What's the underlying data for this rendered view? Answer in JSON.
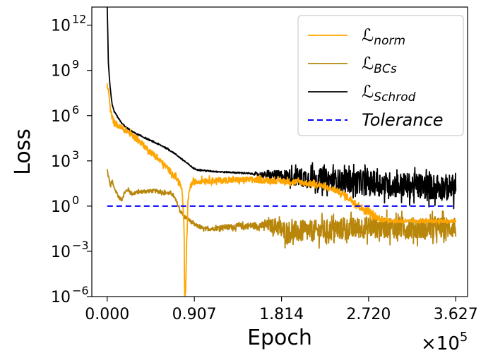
{
  "chart_data": {
    "type": "line",
    "title": "",
    "xlabel": "Epoch",
    "ylabel": "Loss",
    "x_multiplier_label": "×10",
    "x_multiplier_exp": "5",
    "x_scale_factor": 100000,
    "x_ticks": [
      0,
      90700,
      181400,
      272000,
      362700
    ],
    "x_tick_labels": [
      "0.000",
      "0.907",
      "1.814",
      "2.720",
      "3.627"
    ],
    "xlim": [
      -16000,
      375000
    ],
    "y_scale": "log",
    "ylim_exp": [
      -6,
      13.2
    ],
    "y_ticks_exp": [
      -6,
      -3,
      0,
      3,
      6,
      9,
      12
    ],
    "y_tick_base": "10",
    "y_tick_exps": [
      "−6",
      "−3",
      "0",
      "3",
      "6",
      "9",
      "12"
    ],
    "grid": false,
    "legend_position": "top-right",
    "series": [
      {
        "name": "norm",
        "legend_main": "ℒ",
        "legend_sub": "norm",
        "color": "#FFA500",
        "style": "solid",
        "points_log10": [
          [
            0,
            8
          ],
          [
            700,
            7.8
          ],
          [
            1500,
            7.5
          ],
          [
            2500,
            6.9
          ],
          [
            3500,
            6.3
          ],
          [
            5000,
            5.9
          ],
          [
            7000,
            5.6
          ],
          [
            10000,
            5.4
          ],
          [
            14000,
            5.2
          ],
          [
            20000,
            5.0
          ],
          [
            30000,
            4.5
          ],
          [
            40000,
            3.9
          ],
          [
            50000,
            3.3
          ],
          [
            60000,
            2.7
          ],
          [
            70000,
            2.0
          ],
          [
            75000,
            1.6
          ],
          [
            78000,
            1.0
          ],
          [
            80000,
            -1.5
          ],
          [
            80500,
            -6
          ],
          [
            81500,
            -6
          ],
          [
            82500,
            -3
          ],
          [
            84000,
            0.2
          ],
          [
            86000,
            1.3
          ],
          [
            90000,
            1.6
          ],
          [
            100000,
            1.7
          ],
          [
            120000,
            1.7
          ],
          [
            150000,
            1.75
          ],
          [
            200000,
            1.6
          ],
          [
            220000,
            1.4
          ],
          [
            240000,
            1.0
          ],
          [
            250000,
            0.6
          ],
          [
            260000,
            0.1
          ],
          [
            268000,
            -0.3
          ],
          [
            272000,
            -0.3
          ],
          [
            276000,
            -0.6
          ],
          [
            285000,
            -0.9
          ],
          [
            300000,
            -1.0
          ],
          [
            320000,
            -1.0
          ],
          [
            340000,
            -1.0
          ],
          [
            362700,
            -1.0
          ]
        ],
        "noise": [
          [
            240000,
            0.25
          ],
          [
            270000,
            0.35
          ],
          [
            290000,
            0.15
          ]
        ]
      },
      {
        "name": "BCs",
        "legend_main": "ℒ",
        "legend_sub": "BCs",
        "color": "#B8860B",
        "style": "solid",
        "points_log10": [
          [
            0,
            2.4
          ],
          [
            1000,
            2.0
          ],
          [
            2000,
            1.8
          ],
          [
            3500,
            1.3
          ],
          [
            5000,
            1.7
          ],
          [
            7000,
            1.2
          ],
          [
            9000,
            1.0
          ],
          [
            12000,
            0.6
          ],
          [
            15000,
            0.4
          ],
          [
            18000,
            0.9
          ],
          [
            22000,
            1.1
          ],
          [
            26000,
            0.8
          ],
          [
            30000,
            0.9
          ],
          [
            40000,
            1.0
          ],
          [
            50000,
            1.0
          ],
          [
            60000,
            0.9
          ],
          [
            68000,
            0.8
          ],
          [
            72000,
            0.3
          ],
          [
            76000,
            -0.3
          ],
          [
            80000,
            -0.7
          ],
          [
            85000,
            -0.9
          ],
          [
            90000,
            -1.2
          ],
          [
            100000,
            -1.5
          ],
          [
            110000,
            -1.5
          ],
          [
            120000,
            -1.4
          ],
          [
            150000,
            -1.3
          ],
          [
            175000,
            -1.3
          ],
          [
            185000,
            -1.7
          ],
          [
            200000,
            -1.7
          ],
          [
            230000,
            -1.6
          ],
          [
            270000,
            -1.4
          ],
          [
            300000,
            -1.4
          ],
          [
            330000,
            -1.5
          ],
          [
            362700,
            -1.4
          ]
        ],
        "noise": [
          [
            100000,
            0.15
          ],
          [
            160000,
            0.3
          ],
          [
            185000,
            0.9
          ],
          [
            362700,
            0.9
          ]
        ]
      },
      {
        "name": "Schrod",
        "legend_main": "ℒ",
        "legend_sub": "Schrod",
        "color": "#000000",
        "style": "solid",
        "points_log10": [
          [
            0,
            13.2
          ],
          [
            600,
            11.5
          ],
          [
            1200,
            9.5
          ],
          [
            2000,
            8.8
          ],
          [
            3000,
            7.9
          ],
          [
            4000,
            7.3
          ],
          [
            5000,
            6.8
          ],
          [
            7000,
            6.3
          ],
          [
            10000,
            6.0
          ],
          [
            15000,
            5.5
          ],
          [
            20000,
            5.2
          ],
          [
            30000,
            4.8
          ],
          [
            40000,
            4.5
          ],
          [
            50000,
            4.2
          ],
          [
            60000,
            3.9
          ],
          [
            70000,
            3.5
          ],
          [
            80000,
            3.0
          ],
          [
            90000,
            2.5
          ],
          [
            95000,
            2.4
          ],
          [
            110000,
            2.3
          ],
          [
            140000,
            2.2
          ],
          [
            180000,
            2.0
          ],
          [
            220000,
            1.8
          ],
          [
            260000,
            1.6
          ],
          [
            300000,
            1.4
          ],
          [
            330000,
            1.3
          ],
          [
            362700,
            1.2
          ]
        ],
        "noise": [
          [
            150000,
            0.05
          ],
          [
            175000,
            0.4
          ],
          [
            200000,
            0.8
          ],
          [
            260000,
            1.0
          ],
          [
            362700,
            1.1
          ]
        ]
      },
      {
        "name": "Tolerance",
        "legend_main": "Tolerance",
        "legend_sub": "",
        "color": "#0000FF",
        "style": "dashed",
        "points_log10": [
          [
            0,
            0
          ],
          [
            362700,
            0
          ]
        ]
      }
    ]
  }
}
